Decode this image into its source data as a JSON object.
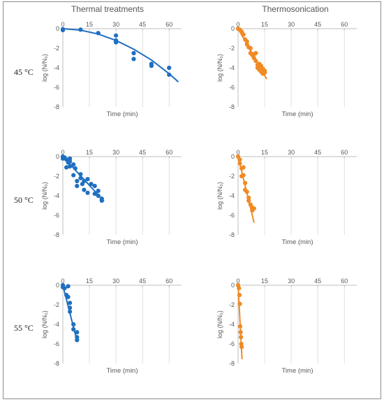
{
  "figure": {
    "column_titles": [
      "Thermal treatments",
      "Thermosonication"
    ],
    "row_labels": [
      "45 °C",
      "50 °C",
      "55 °C"
    ]
  },
  "chart_data": [
    {
      "type": "scatter",
      "row": 0,
      "col": 0,
      "treatment": "Thermal treatments",
      "temperature": "45 °C",
      "color": "#1f6fc1",
      "xlabel": "Time (min)",
      "ylabel": "log (N/N₀)",
      "xlim": [
        0,
        67
      ],
      "ylim": [
        -8,
        0
      ],
      "xticks": [
        0,
        15,
        30,
        45,
        60
      ],
      "yticks": [
        0,
        -2,
        -4,
        -6,
        -8
      ],
      "grid": true,
      "points": [
        [
          0,
          -0.05
        ],
        [
          0,
          -0.15
        ],
        [
          10,
          -0.1
        ],
        [
          20,
          -0.45
        ],
        [
          30,
          -1.2
        ],
        [
          30,
          -0.7
        ],
        [
          30,
          -1.4
        ],
        [
          40,
          -2.5
        ],
        [
          40,
          -3.1
        ],
        [
          50,
          -3.6
        ],
        [
          50,
          -3.8
        ],
        [
          60,
          -4.0
        ],
        [
          60,
          -4.7
        ]
      ],
      "trend": [
        [
          0,
          0
        ],
        [
          10,
          -0.15
        ],
        [
          20,
          -0.55
        ],
        [
          30,
          -1.2
        ],
        [
          40,
          -2.1
        ],
        [
          50,
          -3.2
        ],
        [
          60,
          -4.6
        ],
        [
          65,
          -5.4
        ]
      ]
    },
    {
      "type": "scatter",
      "row": 0,
      "col": 1,
      "treatment": "Thermosonication",
      "temperature": "45 °C",
      "color": "#f08a24",
      "xlabel": "Time (min)",
      "ylabel": "log (N/N₀)",
      "xlim": [
        0,
        67
      ],
      "ylim": [
        -8,
        0
      ],
      "xticks": [
        0,
        15,
        30,
        45,
        60
      ],
      "yticks": [
        0,
        -2,
        -4,
        -6,
        -8
      ],
      "grid": true,
      "points": [
        [
          0,
          0
        ],
        [
          1,
          -0.1
        ],
        [
          2,
          -0.3
        ],
        [
          3,
          -0.6
        ],
        [
          4,
          -1.1
        ],
        [
          5,
          -1.3
        ],
        [
          5,
          -1.6
        ],
        [
          6,
          -1.9
        ],
        [
          7,
          -2.0
        ],
        [
          7,
          -2.5
        ],
        [
          8,
          -2.7
        ],
        [
          9,
          -3.0
        ],
        [
          9,
          -2.6
        ],
        [
          10,
          -3.3
        ],
        [
          10,
          -2.5
        ],
        [
          11,
          -3.7
        ],
        [
          11,
          -4.0
        ],
        [
          12,
          -3.6
        ],
        [
          12,
          -4.2
        ],
        [
          13,
          -3.8
        ],
        [
          13,
          -4.4
        ],
        [
          14,
          -4.1
        ],
        [
          14,
          -4.6
        ],
        [
          15,
          -4.3
        ],
        [
          15,
          -4.5
        ]
      ],
      "trend": [
        [
          0,
          0
        ],
        [
          16,
          -5.1
        ]
      ]
    },
    {
      "type": "scatter",
      "row": 1,
      "col": 0,
      "treatment": "Thermal treatments",
      "temperature": "50 °C",
      "color": "#1f6fc1",
      "xlabel": "Time (min)",
      "ylabel": "log (N/N₀)",
      "xlim": [
        0,
        67
      ],
      "ylim": [
        -8,
        0
      ],
      "xticks": [
        0,
        15,
        30,
        45,
        60
      ],
      "yticks": [
        0,
        -2,
        -4,
        -6,
        -8
      ],
      "grid": true,
      "points": [
        [
          0,
          0
        ],
        [
          0,
          -0.2
        ],
        [
          1,
          -0.1
        ],
        [
          2,
          -0.3
        ],
        [
          2,
          -1.1
        ],
        [
          3,
          -0.6
        ],
        [
          4,
          -0.2
        ],
        [
          4,
          -0.5
        ],
        [
          4,
          -1.0
        ],
        [
          6,
          -0.8
        ],
        [
          6,
          -1.9
        ],
        [
          7,
          -1.2
        ],
        [
          8,
          -3.0
        ],
        [
          8,
          -2.5
        ],
        [
          10,
          -2.2
        ],
        [
          10,
          -1.8
        ],
        [
          11,
          -2.8
        ],
        [
          12,
          -3.4
        ],
        [
          12,
          -2.5
        ],
        [
          14,
          -2.3
        ],
        [
          14,
          -3.7
        ],
        [
          16,
          -2.8
        ],
        [
          18,
          -3.0
        ],
        [
          18,
          -3.8
        ],
        [
          20,
          -3.5
        ],
        [
          20,
          -4.0
        ],
        [
          22,
          -4.3
        ],
        [
          22,
          -4.5
        ]
      ],
      "trend": [
        [
          0,
          0
        ],
        [
          23,
          -4.5
        ]
      ]
    },
    {
      "type": "scatter",
      "row": 1,
      "col": 1,
      "treatment": "Thermosonication",
      "temperature": "50 °C",
      "color": "#f08a24",
      "xlabel": "Time (min)",
      "ylabel": "log (N/N₀)",
      "xlim": [
        0,
        67
      ],
      "ylim": [
        -8,
        0
      ],
      "xticks": [
        0,
        15,
        30,
        45,
        60
      ],
      "yticks": [
        0,
        -2,
        -4,
        -6,
        -8
      ],
      "grid": true,
      "points": [
        [
          0,
          0
        ],
        [
          1,
          -0.3
        ],
        [
          1,
          -0.7
        ],
        [
          2,
          -1.2
        ],
        [
          2,
          -2.0
        ],
        [
          3,
          -1.1
        ],
        [
          3,
          -1.9
        ],
        [
          4,
          -2.7
        ],
        [
          4,
          -3.4
        ],
        [
          5,
          -3.6
        ],
        [
          6,
          -4.2
        ],
        [
          6,
          -4.5
        ],
        [
          7,
          -4.9
        ],
        [
          8,
          -5.2
        ],
        [
          8,
          -5.5
        ],
        [
          9,
          -5.3
        ]
      ],
      "trend": [
        [
          0,
          0
        ],
        [
          9,
          -6.7
        ]
      ]
    },
    {
      "type": "scatter",
      "row": 2,
      "col": 0,
      "treatment": "Thermal treatments",
      "temperature": "55 °C",
      "color": "#1f6fc1",
      "xlabel": "Time (min)",
      "ylabel": "log (N/N₀)",
      "xlim": [
        0,
        67
      ],
      "ylim": [
        -8,
        0
      ],
      "xticks": [
        0,
        15,
        30,
        45,
        60
      ],
      "yticks": [
        0,
        -2,
        -4,
        -6,
        -8
      ],
      "grid": true,
      "points": [
        [
          0,
          0
        ],
        [
          0,
          -0.2
        ],
        [
          1,
          -0.3
        ],
        [
          2,
          -1.0
        ],
        [
          3,
          -0.1
        ],
        [
          3,
          -1.2
        ],
        [
          4,
          -1.8
        ],
        [
          4,
          -2.3
        ],
        [
          4,
          -2.7
        ],
        [
          6,
          -4.0
        ],
        [
          6,
          -4.5
        ],
        [
          8,
          -4.8
        ],
        [
          8,
          -5.3
        ],
        [
          8,
          -5.6
        ]
      ],
      "trend": [
        [
          0,
          0
        ],
        [
          8,
          -5.7
        ]
      ]
    },
    {
      "type": "scatter",
      "row": 2,
      "col": 1,
      "treatment": "Thermosonication",
      "temperature": "55 °C",
      "color": "#f08a24",
      "xlabel": "Time (min)",
      "ylabel": "log (N/N₀)",
      "xlim": [
        0,
        67
      ],
      "ylim": [
        -8,
        0
      ],
      "xticks": [
        0,
        15,
        30,
        45,
        60
      ],
      "yticks": [
        0,
        -2,
        -4,
        -6,
        -8
      ],
      "grid": true,
      "points": [
        [
          0,
          0
        ],
        [
          0.5,
          -0.3
        ],
        [
          0.8,
          -1.0
        ],
        [
          1,
          -1.9
        ],
        [
          1.2,
          -4.2
        ],
        [
          1.4,
          -4.8
        ],
        [
          1.6,
          -5.3
        ],
        [
          1.8,
          -6.0
        ],
        [
          2,
          -6.3
        ]
      ],
      "trend": [
        [
          0,
          0
        ],
        [
          2.2,
          -7.5
        ]
      ]
    }
  ]
}
